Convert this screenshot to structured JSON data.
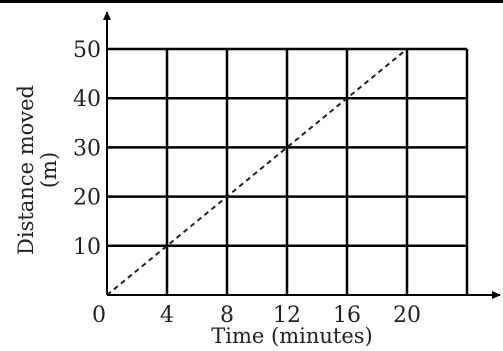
{
  "chart_data": {
    "type": "line",
    "xlabel": "Time (minutes)",
    "ylabel": "Distance moved (m)",
    "ylabel_lines": [
      "Distance moved",
      "(m)"
    ],
    "xlim": [
      0,
      24
    ],
    "ylim": [
      0,
      50
    ],
    "grid": true,
    "x_ticks": [
      0,
      4,
      8,
      12,
      16,
      20
    ],
    "x_tick_labels": [
      "0",
      "4",
      "8",
      "12",
      "16",
      "20"
    ],
    "y_ticks": [
      10,
      20,
      30,
      40,
      50
    ],
    "y_tick_labels": [
      "10",
      "20",
      "30",
      "40",
      "50"
    ],
    "series": [
      {
        "style": "dashed",
        "x": [
          0,
          4,
          8,
          12,
          16,
          20
        ],
        "y": [
          0,
          10,
          20,
          30,
          40,
          50
        ]
      }
    ]
  }
}
